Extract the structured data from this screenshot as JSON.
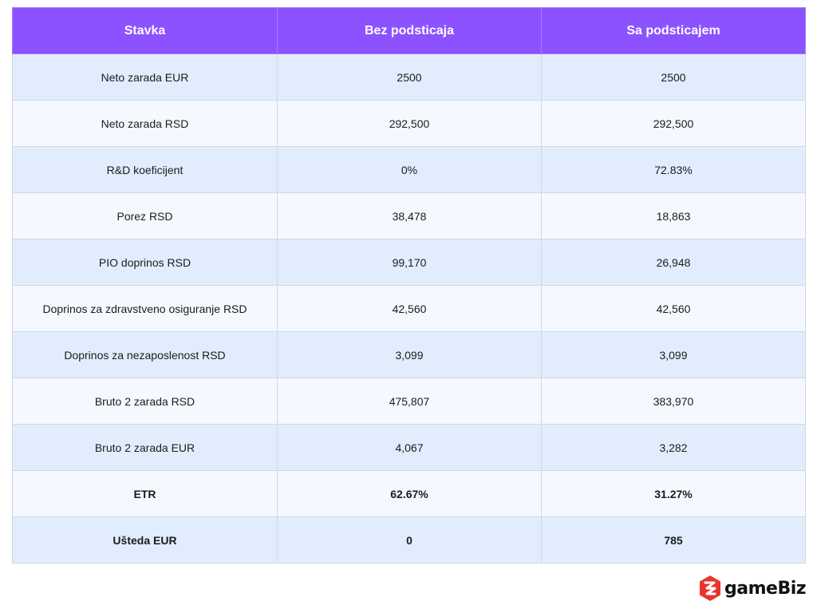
{
  "table": {
    "headers": [
      "Stavka",
      "Bez podsticaja",
      "Sa podsticajem"
    ],
    "rows": [
      {
        "label": "Neto zarada EUR",
        "without": "2500",
        "with": "2500"
      },
      {
        "label": "Neto zarada RSD",
        "without": "292,500",
        "with": "292,500"
      },
      {
        "label": "R&D koeficijent",
        "without": "0%",
        "with": "72.83%"
      },
      {
        "label": "Porez RSD",
        "without": "38,478",
        "with": "18,863"
      },
      {
        "label": "PIO doprinos RSD",
        "without": "99,170",
        "with": "26,948"
      },
      {
        "label": "Doprinos za zdravstveno osiguranje RSD",
        "without": "42,560",
        "with": "42,560"
      },
      {
        "label": "Doprinos za nezaposlenost RSD",
        "without": "3,099",
        "with": "3,099"
      },
      {
        "label": "Bruto 2 zarada RSD",
        "without": "475,807",
        "with": "383,970"
      },
      {
        "label": "Bruto 2 zarada EUR",
        "without": "4,067",
        "with": "3,282"
      },
      {
        "label": "ETR",
        "without": "62.67%",
        "with": "31.27%"
      },
      {
        "label": "Ušteda EUR",
        "without": "0",
        "with": "785"
      }
    ]
  },
  "logo": {
    "text": "gameBiz",
    "icon": "gamebiz-logo-icon",
    "color": "#e8352b"
  },
  "colors": {
    "header_bg": "#8c52ff",
    "row_odd": "#e1edfd",
    "row_even": "#f5f9ff"
  }
}
